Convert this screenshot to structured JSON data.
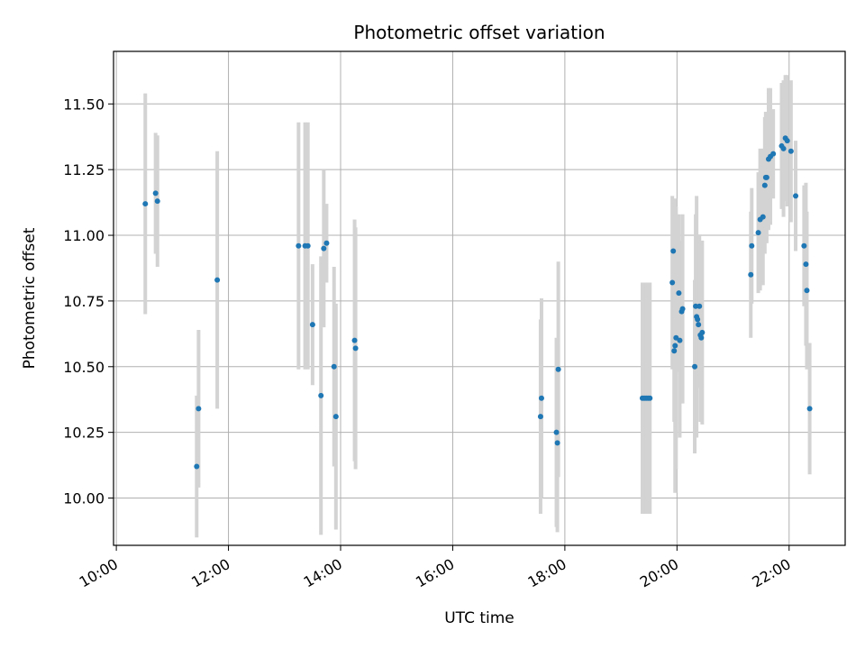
{
  "chart_data": {
    "type": "scatter",
    "title": "Photometric offset variation",
    "xlabel": "UTC time",
    "ylabel": "Photometric offset",
    "xlim": [
      "09:57",
      "23:00"
    ],
    "ylim": [
      9.82,
      11.7
    ],
    "x_ticks": [
      "10:00",
      "12:00",
      "14:00",
      "16:00",
      "18:00",
      "20:00",
      "22:00"
    ],
    "y_ticks": [
      "10.00",
      "10.25",
      "10.50",
      "10.75",
      "11.00",
      "11.25",
      "11.50"
    ],
    "grid": true,
    "colors": {
      "points": "#1f77b4",
      "error_bars": "#d3d3d3",
      "grid": "#b0b0b0"
    },
    "series": [
      {
        "x": [
          "10:31",
          "10:42",
          "10:44",
          "11:26",
          "11:28",
          "11:48",
          "13:15",
          "13:22",
          "13:25",
          "13:30",
          "13:39",
          "13:42",
          "13:45",
          "13:53",
          "13:55",
          "14:15",
          "14:16",
          "17:34",
          "17:35",
          "17:51",
          "17:52",
          "17:53",
          "19:23",
          "19:25",
          "19:27",
          "19:29",
          "19:31",
          "19:55",
          "19:56",
          "19:57",
          "19:58",
          "19:59",
          "20:02",
          "20:03",
          "20:05",
          "20:06",
          "20:19",
          "20:20",
          "20:21",
          "20:22",
          "20:23",
          "20:24",
          "20:25",
          "20:26",
          "20:27",
          "21:19",
          "21:20",
          "21:27",
          "21:29",
          "21:32",
          "21:34",
          "21:35",
          "21:36",
          "21:38",
          "21:40",
          "21:43",
          "21:52",
          "21:54",
          "21:56",
          "21:58",
          "22:02",
          "22:07",
          "22:16",
          "22:18",
          "22:19",
          "22:22"
        ],
        "y": [
          11.12,
          11.16,
          11.13,
          10.12,
          10.34,
          10.83,
          10.96,
          10.96,
          10.96,
          10.66,
          10.39,
          10.95,
          10.97,
          10.5,
          10.31,
          10.6,
          10.57,
          10.31,
          10.38,
          10.25,
          10.21,
          10.49,
          10.38,
          10.38,
          10.38,
          10.38,
          10.38,
          10.82,
          10.94,
          10.56,
          10.58,
          10.61,
          10.78,
          10.6,
          10.71,
          10.72,
          10.5,
          10.73,
          10.69,
          10.68,
          10.66,
          10.73,
          10.62,
          10.61,
          10.63,
          10.85,
          10.96,
          11.01,
          11.06,
          11.07,
          11.19,
          11.22,
          11.22,
          11.29,
          11.3,
          11.31,
          11.34,
          11.33,
          11.37,
          11.36,
          11.32,
          11.15,
          10.96,
          10.89,
          10.79,
          10.34
        ],
        "yerr": [
          0.42,
          0.23,
          0.25,
          0.27,
          0.3,
          0.49,
          0.47,
          0.47,
          0.47,
          0.23,
          0.53,
          0.3,
          0.15,
          0.38,
          0.43,
          0.46,
          0.46,
          0.37,
          0.38,
          0.36,
          0.34,
          0.41,
          0.44,
          0.44,
          0.44,
          0.44,
          0.44,
          0.33,
          0.18,
          0.27,
          0.56,
          0.5,
          0.3,
          0.37,
          0.27,
          0.36,
          0.33,
          0.35,
          0.46,
          0.23,
          0.24,
          0.27,
          0.33,
          0.32,
          0.35,
          0.24,
          0.22,
          0.23,
          0.27,
          0.26,
          0.26,
          0.25,
          0.25,
          0.27,
          0.26,
          0.17,
          0.24,
          0.26,
          0.24,
          0.25,
          0.27,
          0.21,
          0.23,
          0.31,
          0.3,
          0.25
        ]
      }
    ]
  }
}
